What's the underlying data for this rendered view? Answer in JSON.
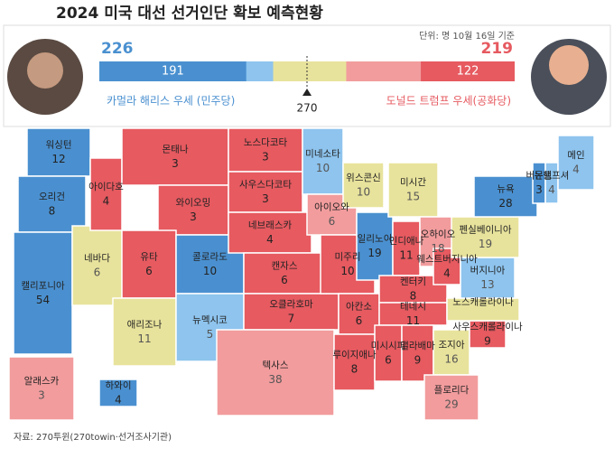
{
  "title": "2024 미국 대선 선거인단 확보 예측현황",
  "unit_note": "단위: 명 10월 16일 기준",
  "bar": {
    "dem_total": 226,
    "dem_safe": 191,
    "rep_total": 219,
    "rep_safe": 122,
    "threshold": 270,
    "dem_label": "카멀라 해리스 우세 (민주당)",
    "rep_label": "도널드 트럼프 우세(공화당)"
  },
  "colors": {
    "safe_dem": "#4a90d0",
    "lean_dem": "#8ec4ee",
    "toss": "#e8e39c",
    "lean_rep": "#f29c9d",
    "safe_rep": "#e65a60"
  },
  "states": [
    {
      "name": "워싱턴",
      "votes": 12,
      "category": "safe_dem"
    },
    {
      "name": "오리건",
      "votes": 8,
      "category": "safe_dem"
    },
    {
      "name": "캘리포니아",
      "votes": 54,
      "category": "safe_dem"
    },
    {
      "name": "네바다",
      "votes": 6,
      "category": "toss"
    },
    {
      "name": "아이다호",
      "votes": 4,
      "category": "safe_rep"
    },
    {
      "name": "몬태나",
      "votes": 3,
      "category": "safe_rep"
    },
    {
      "name": "와이오밍",
      "votes": 3,
      "category": "safe_rep"
    },
    {
      "name": "유타",
      "votes": 6,
      "category": "safe_rep"
    },
    {
      "name": "애리조나",
      "votes": 11,
      "category": "toss"
    },
    {
      "name": "콜로라도",
      "votes": 10,
      "category": "safe_dem"
    },
    {
      "name": "뉴멕시코",
      "votes": 5,
      "category": "lean_dem"
    },
    {
      "name": "노스다코타",
      "votes": 3,
      "category": "safe_rep"
    },
    {
      "name": "사우스다코타",
      "votes": 3,
      "category": "safe_rep"
    },
    {
      "name": "네브래스카",
      "votes": 4,
      "category": "safe_rep"
    },
    {
      "name": "캔자스",
      "votes": 6,
      "category": "safe_rep"
    },
    {
      "name": "오클라호마",
      "votes": 7,
      "category": "safe_rep"
    },
    {
      "name": "텍사스",
      "votes": 38,
      "category": "lean_rep"
    },
    {
      "name": "미네소타",
      "votes": 10,
      "category": "lean_dem"
    },
    {
      "name": "아이오와",
      "votes": 6,
      "category": "lean_rep"
    },
    {
      "name": "미주리",
      "votes": 10,
      "category": "safe_rep"
    },
    {
      "name": "아칸소",
      "votes": 6,
      "category": "safe_rep"
    },
    {
      "name": "루이지애나",
      "votes": 8,
      "category": "safe_rep"
    },
    {
      "name": "위스콘신",
      "votes": 10,
      "category": "toss"
    },
    {
      "name": "일리노이",
      "votes": 19,
      "category": "safe_dem"
    },
    {
      "name": "미시간",
      "votes": 15,
      "category": "toss"
    },
    {
      "name": "인디애나",
      "votes": 11,
      "category": "safe_rep"
    },
    {
      "name": "오하이오",
      "votes": 18,
      "category": "lean_rep"
    },
    {
      "name": "켄터키",
      "votes": 8,
      "category": "safe_rep"
    },
    {
      "name": "테네시",
      "votes": 11,
      "category": "safe_rep"
    },
    {
      "name": "미시시피",
      "votes": 6,
      "category": "safe_rep"
    },
    {
      "name": "앨라배마",
      "votes": 9,
      "category": "safe_rep"
    },
    {
      "name": "조지아",
      "votes": 16,
      "category": "toss"
    },
    {
      "name": "플로리다",
      "votes": 29,
      "category": "lean_rep"
    },
    {
      "name": "사우스캐롤라이나",
      "votes": 9,
      "category": "safe_rep"
    },
    {
      "name": "노스캐롤라이나",
      "votes": null,
      "category": "toss"
    },
    {
      "name": "웨스트버지니아",
      "votes": 4,
      "category": "safe_rep"
    },
    {
      "name": "버지니아",
      "votes": 13,
      "category": "lean_dem"
    },
    {
      "name": "펜실베이니아",
      "votes": 19,
      "category": "toss"
    },
    {
      "name": "뉴욕",
      "votes": 28,
      "category": "safe_dem"
    },
    {
      "name": "버몬트",
      "votes": 3,
      "category": "safe_dem"
    },
    {
      "name": "뉴햄프셔",
      "votes": 4,
      "category": "lean_dem"
    },
    {
      "name": "메인",
      "votes": 4,
      "category": "lean_dem"
    },
    {
      "name": "알래스카",
      "votes": 3,
      "category": "lean_rep"
    },
    {
      "name": "하와이",
      "votes": 4,
      "category": "safe_dem"
    }
  ],
  "source": "자료: 270투윈(270towin·선거조사기관)"
}
